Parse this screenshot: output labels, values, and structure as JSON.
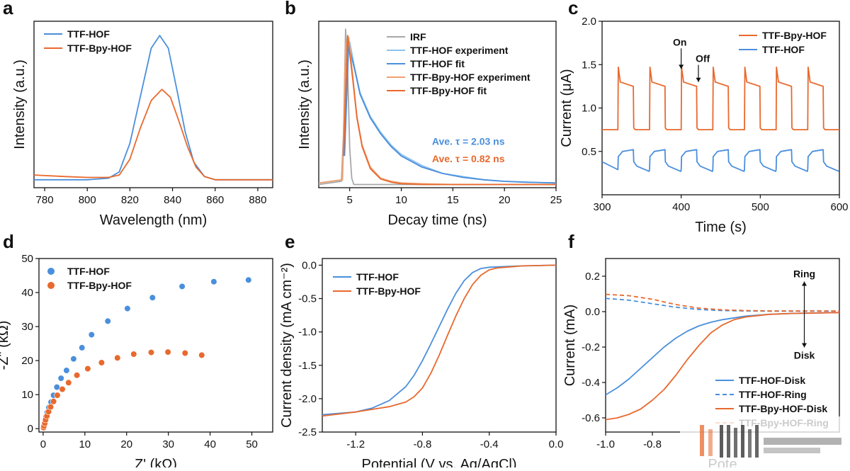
{
  "colors": {
    "blue": "#4a8fdc",
    "orange": "#e8692e",
    "gray": "#a8a8a8",
    "axis": "#111111"
  },
  "chart_data": [
    {
      "panel": "a",
      "type": "line",
      "xlabel": "Wavelength (nm)",
      "ylabel": "Intensity (a.u.)",
      "xlim": [
        775,
        887
      ],
      "ylim": [
        0,
        1.05
      ],
      "xticks": [
        780,
        800,
        820,
        840,
        860,
        880
      ],
      "yticks": [],
      "legend_position": "top-left",
      "series": [
        {
          "name": "TTF-HOF",
          "color": "#4a8fdc",
          "dash": "",
          "x": [
            775,
            790,
            800,
            810,
            815,
            820,
            825,
            830,
            834,
            838,
            842,
            846,
            850,
            855,
            860,
            870,
            887
          ],
          "y": [
            0.05,
            0.05,
            0.05,
            0.06,
            0.1,
            0.28,
            0.58,
            0.88,
            0.96,
            0.88,
            0.62,
            0.35,
            0.16,
            0.07,
            0.05,
            0.05,
            0.05
          ]
        },
        {
          "name": "TTF-Bpy-HOF",
          "color": "#e8692e",
          "dash": "",
          "x": [
            775,
            790,
            800,
            810,
            815,
            820,
            825,
            830,
            835,
            839,
            843,
            847,
            851,
            855,
            860,
            870,
            887
          ],
          "y": [
            0.08,
            0.07,
            0.065,
            0.065,
            0.08,
            0.18,
            0.38,
            0.55,
            0.62,
            0.57,
            0.42,
            0.26,
            0.13,
            0.07,
            0.05,
            0.05,
            0.05
          ]
        }
      ]
    },
    {
      "panel": "b",
      "type": "line",
      "xlabel": "Decay time (ns)",
      "ylabel": "Intensity (a.u.)",
      "xlim": [
        2,
        25
      ],
      "ylim": [
        0,
        1.05
      ],
      "xticks": [
        5,
        10,
        15,
        20,
        25
      ],
      "yticks": [],
      "legend_position": "top-right",
      "series": [
        {
          "name": "IRF",
          "color": "#a8a8a8",
          "dash": "",
          "x": [
            2,
            4.2,
            4.4,
            4.6,
            4.8,
            5.0,
            5.2,
            5.4,
            25
          ],
          "y": [
            0.02,
            0.04,
            0.35,
            1.0,
            0.75,
            0.25,
            0.06,
            0.02,
            0.02
          ]
        },
        {
          "name": "TTF-HOF experiment",
          "color": "#8ec2ee",
          "dash": "",
          "x": [
            2,
            4.3,
            4.7,
            5.0,
            5.5,
            6,
            7,
            8,
            9,
            10,
            12,
            14,
            16,
            18,
            20,
            22,
            25
          ],
          "y": [
            0.03,
            0.05,
            0.85,
            0.92,
            0.75,
            0.6,
            0.45,
            0.35,
            0.27,
            0.21,
            0.14,
            0.09,
            0.07,
            0.05,
            0.04,
            0.035,
            0.03
          ]
        },
        {
          "name": "TTF-HOF fit",
          "color": "#4a8fdc",
          "dash": "",
          "x": [
            4.5,
            4.9,
            5.5,
            6,
            7,
            8,
            9,
            10,
            12,
            14,
            16,
            18,
            20,
            22,
            25
          ],
          "y": [
            0.2,
            0.9,
            0.74,
            0.59,
            0.44,
            0.34,
            0.26,
            0.2,
            0.13,
            0.09,
            0.065,
            0.05,
            0.04,
            0.035,
            0.03
          ]
        },
        {
          "name": "TTF-Bpy-HOF experiment",
          "color": "#f0a070",
          "dash": "",
          "x": [
            2,
            4.3,
            4.6,
            4.9,
            5.3,
            5.7,
            6.2,
            7,
            8,
            9,
            10,
            12,
            15,
            20,
            25
          ],
          "y": [
            0.03,
            0.05,
            0.9,
            0.95,
            0.7,
            0.45,
            0.27,
            0.13,
            0.06,
            0.04,
            0.03,
            0.025,
            0.02,
            0.02,
            0.02
          ]
        },
        {
          "name": "TTF-Bpy-HOF fit",
          "color": "#e8692e",
          "dash": "",
          "x": [
            4.4,
            4.8,
            5.3,
            5.7,
            6.2,
            7,
            8,
            9,
            10,
            12,
            15,
            20,
            25
          ],
          "y": [
            0.2,
            0.96,
            0.68,
            0.44,
            0.26,
            0.12,
            0.055,
            0.035,
            0.025,
            0.02,
            0.02,
            0.02,
            0.02
          ]
        }
      ],
      "annotations": [
        {
          "text": "Ave. τ = 2.03 ns",
          "color": "#4a8fdc",
          "x": 16.5,
          "y": 0.27
        },
        {
          "text": "Ave. τ = 0.82 ns",
          "color": "#e8692e",
          "x": 16.5,
          "y": 0.16
        }
      ]
    },
    {
      "panel": "c",
      "type": "line",
      "xlabel": "Time (s)",
      "ylabel": "Current (μA)",
      "xlim": [
        300,
        600
      ],
      "ylim": [
        0,
        2.0
      ],
      "xticks": [
        300,
        400,
        500,
        600
      ],
      "yticks": [
        0.5,
        1.0,
        1.5,
        2.0
      ],
      "tick_labels_y": [
        "0.5",
        "1.0",
        "1.5",
        "2.0"
      ],
      "legend_position": "top-right",
      "on_times": [
        320,
        360,
        400,
        440,
        480,
        520,
        560
      ],
      "off_times": [
        340,
        380,
        420,
        460,
        500,
        540,
        580
      ],
      "series": [
        {
          "name": "TTF-Bpy-HOF",
          "color": "#e8692e",
          "dash": "",
          "dark_level": 0.75,
          "light_peak": 1.47,
          "light_plateau": 1.25
        },
        {
          "name": "TTF-HOF",
          "color": "#4a8fdc",
          "dash": "",
          "dark_level": 0.27,
          "light_rise": 0.44,
          "light_plateau": 0.52,
          "dark_start": 0.38
        }
      ],
      "annotations": [
        {
          "text": "On",
          "x": 400,
          "y": 1.72,
          "arrow_to": 1.45
        },
        {
          "text": "Off",
          "x": 420,
          "y": 1.53,
          "arrow_to": 1.3
        }
      ]
    },
    {
      "panel": "d",
      "type": "scatter",
      "xlabel": "Z' (kΩ)",
      "ylabel": "-Z\" (kΩ)",
      "xlim": [
        -1,
        55
      ],
      "ylim": [
        -1,
        50
      ],
      "xticks": [
        0,
        10,
        20,
        30,
        40,
        50
      ],
      "yticks": [
        0,
        10,
        20,
        30,
        40,
        50
      ],
      "legend_position": "top-left",
      "series": [
        {
          "name": "TTF-HOF",
          "color": "#4a8fdc",
          "x": [
            0.1,
            0.2,
            0.3,
            0.5,
            0.7,
            1.0,
            1.4,
            1.9,
            2.5,
            3.3,
            4.3,
            5.6,
            7.3,
            9.3,
            11.6,
            15.5,
            20.2,
            26.2,
            33.3,
            40.9,
            49.2
          ],
          "y": [
            0.3,
            0.8,
            1.5,
            2.5,
            3.5,
            4.8,
            6.2,
            7.8,
            9.8,
            12.2,
            14.8,
            17.1,
            20.5,
            23.8,
            27.6,
            31.6,
            35.3,
            38.5,
            41.8,
            43.2,
            43.7
          ]
        },
        {
          "name": "TTF-Bpy-HOF",
          "color": "#e8692e",
          "x": [
            0.1,
            0.2,
            0.4,
            0.6,
            0.9,
            1.3,
            1.8,
            2.5,
            3.4,
            4.6,
            6.1,
            8.1,
            10.7,
            14.0,
            17.8,
            21.7,
            25.9,
            29.9,
            34.0,
            38.0
          ],
          "y": [
            0.3,
            0.8,
            1.6,
            2.6,
            3.7,
            5.0,
            6.4,
            8.0,
            9.8,
            11.6,
            13.5,
            15.7,
            17.6,
            19.4,
            20.8,
            21.9,
            22.4,
            22.5,
            22.2,
            21.6
          ]
        }
      ]
    },
    {
      "panel": "e",
      "type": "line",
      "xlabel": "Potential (V vs. Ag/AgCl)",
      "ylabel": "Current density (mA cm⁻²)",
      "xlim": [
        -1.4,
        0.0
      ],
      "ylim": [
        -2.5,
        0.1
      ],
      "xticks": [
        -1.2,
        -0.8,
        -0.4,
        0.0
      ],
      "tick_labels_x": [
        "-1.2",
        "-0.8",
        "-0.4",
        "0.0"
      ],
      "yticks": [
        -2.5,
        -2.0,
        -1.5,
        -1.0,
        -0.5,
        0.0
      ],
      "tick_labels_y": [
        "-2.5",
        "-2.0",
        "-1.5",
        "-1.0",
        "-0.5",
        "0.0"
      ],
      "legend_position": "top-left",
      "series": [
        {
          "name": "TTF-HOF",
          "color": "#4a8fdc",
          "dash": "",
          "x": [
            -1.4,
            -1.2,
            -1.1,
            -1.0,
            -0.9,
            -0.85,
            -0.8,
            -0.75,
            -0.7,
            -0.65,
            -0.6,
            -0.55,
            -0.5,
            -0.45,
            -0.4,
            -0.3,
            -0.2,
            0.0
          ],
          "y": [
            -2.24,
            -2.2,
            -2.14,
            -2.03,
            -1.82,
            -1.65,
            -1.43,
            -1.18,
            -0.92,
            -0.66,
            -0.42,
            -0.23,
            -0.11,
            -0.05,
            -0.03,
            -0.02,
            -0.01,
            0.0
          ]
        },
        {
          "name": "TTF-Bpy-HOF",
          "color": "#e8692e",
          "dash": "",
          "x": [
            -1.4,
            -1.2,
            -1.0,
            -0.9,
            -0.85,
            -0.8,
            -0.75,
            -0.7,
            -0.65,
            -0.6,
            -0.55,
            -0.5,
            -0.45,
            -0.4,
            -0.35,
            -0.3,
            -0.2,
            0.0
          ],
          "y": [
            -2.26,
            -2.2,
            -2.12,
            -2.05,
            -1.97,
            -1.84,
            -1.62,
            -1.35,
            -1.05,
            -0.76,
            -0.5,
            -0.29,
            -0.15,
            -0.07,
            -0.04,
            -0.03,
            -0.01,
            0.0
          ]
        }
      ]
    },
    {
      "panel": "f",
      "type": "line",
      "xlabel": "Pote",
      "ylabel": "Current (mA)",
      "xlim": [
        -1.0,
        0.0
      ],
      "ylim": [
        -0.68,
        0.3
      ],
      "xticks": [
        -1.0,
        -0.8
      ],
      "tick_labels_x": [
        "-1.0",
        "-0.8"
      ],
      "yticks": [
        -0.6,
        -0.4,
        -0.2,
        0.0,
        0.2
      ],
      "tick_labels_y": [
        "-0.6",
        "-0.4",
        "-0.2",
        "0.0",
        "0.2"
      ],
      "legend_position": "bottom-right",
      "series": [
        {
          "name": "TTF-HOF-Disk",
          "color": "#4a8fdc",
          "dash": "",
          "x": [
            -1.0,
            -0.95,
            -0.9,
            -0.85,
            -0.8,
            -0.75,
            -0.7,
            -0.65,
            -0.6,
            -0.55,
            -0.5,
            -0.4,
            -0.3,
            -0.2,
            0.0
          ],
          "y": [
            -0.47,
            -0.43,
            -0.38,
            -0.32,
            -0.26,
            -0.2,
            -0.15,
            -0.11,
            -0.08,
            -0.06,
            -0.045,
            -0.025,
            -0.015,
            -0.01,
            -0.005
          ]
        },
        {
          "name": "TTF-HOF-Ring",
          "color": "#4a8fdc",
          "dash": "6,4",
          "x": [
            -1.0,
            -0.9,
            -0.8,
            -0.7,
            -0.6,
            -0.5,
            -0.4,
            -0.3,
            0.0
          ],
          "y": [
            0.075,
            0.065,
            0.045,
            0.025,
            0.012,
            0.006,
            0.004,
            0.003,
            0.003
          ]
        },
        {
          "name": "TTF-Bpy-HOF-Disk",
          "color": "#e8692e",
          "dash": "",
          "x": [
            -1.0,
            -0.95,
            -0.9,
            -0.85,
            -0.8,
            -0.75,
            -0.7,
            -0.65,
            -0.6,
            -0.55,
            -0.5,
            -0.45,
            -0.4,
            -0.3,
            -0.2,
            0.0
          ],
          "y": [
            -0.61,
            -0.6,
            -0.58,
            -0.55,
            -0.5,
            -0.44,
            -0.36,
            -0.27,
            -0.19,
            -0.12,
            -0.075,
            -0.045,
            -0.03,
            -0.015,
            -0.01,
            -0.005
          ]
        },
        {
          "name": "TTF-Bpy-HOF-Ring",
          "color": "#e8692e",
          "dash": "6,4",
          "x": [
            -1.0,
            -0.9,
            -0.8,
            -0.7,
            -0.6,
            -0.5,
            -0.4,
            -0.3,
            0.0
          ],
          "y": [
            0.098,
            0.09,
            0.07,
            0.04,
            0.02,
            0.01,
            0.006,
            0.004,
            0.004
          ]
        }
      ],
      "annotations": [
        {
          "text": "Ring",
          "x": -0.15,
          "y": 0.13,
          "arrow": "up"
        },
        {
          "text": "Disk",
          "x": -0.15,
          "y": -0.17,
          "arrow": "down"
        }
      ]
    }
  ]
}
